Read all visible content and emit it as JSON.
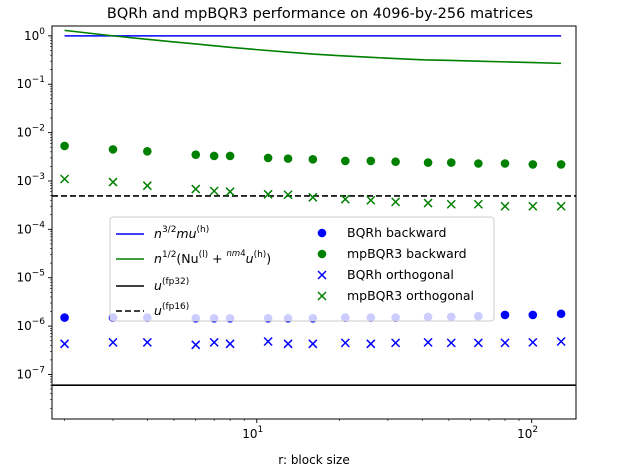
{
  "chart_data": {
    "type": "scatter",
    "title": "BQRh and mpBQR3 performance on 4096-by-256 matrices",
    "xlabel": "r: block size",
    "ylabel": "",
    "xscale": "log",
    "yscale": "log",
    "xlim": [
      1.8,
      145
    ],
    "ylim": [
      1.2e-08,
      1.6
    ],
    "x_ticks": [
      {
        "value": 10,
        "base": "10",
        "exp": "1"
      },
      {
        "value": 100,
        "base": "10",
        "exp": "2"
      }
    ],
    "y_ticks": [
      {
        "value": 1e-07,
        "base": "10",
        "exp": "−7"
      },
      {
        "value": 1e-06,
        "base": "10",
        "exp": "−6"
      },
      {
        "value": 1e-05,
        "base": "10",
        "exp": "−5"
      },
      {
        "value": 0.0001,
        "base": "10",
        "exp": "−4"
      },
      {
        "value": 0.001,
        "base": "10",
        "exp": "−3"
      },
      {
        "value": 0.01,
        "base": "10",
        "exp": "−2"
      },
      {
        "value": 0.1,
        "base": "10",
        "exp": "−1"
      },
      {
        "value": 1,
        "base": "10",
        "exp": "0"
      }
    ],
    "legend_placement": "center-left",
    "grid": false,
    "x": [
      2,
      3,
      4,
      6,
      7,
      8,
      11,
      13,
      16,
      21,
      26,
      32,
      42,
      51,
      64,
      80,
      101,
      128
    ],
    "lines": [
      {
        "name_parts": [
          "n",
          "3/2",
          "mu",
          "(h)"
        ],
        "color": "#0000ff",
        "style": "solid",
        "x": [
          2,
          128
        ],
        "y": [
          1.0,
          1.0
        ]
      },
      {
        "name_parts": [
          "n",
          "1/2",
          "(Nu",
          "(l)",
          " + ",
          "nm",
          "4",
          "u",
          "(h)",
          ")"
        ],
        "color": "#008000",
        "style": "solid",
        "x": [
          2,
          3,
          4,
          5,
          6,
          8,
          10,
          13,
          16,
          20,
          26,
          32,
          40,
          51,
          64,
          80,
          101,
          128
        ],
        "y": [
          1.3,
          1.0,
          0.85,
          0.75,
          0.68,
          0.58,
          0.52,
          0.46,
          0.42,
          0.39,
          0.36,
          0.34,
          0.32,
          0.31,
          0.3,
          0.29,
          0.28,
          0.27
        ]
      },
      {
        "name_parts": [
          "u",
          "(fp32)"
        ],
        "color": "#000000",
        "style": "solid",
        "x": [
          1.8,
          145
        ],
        "y": [
          6e-08,
          6e-08
        ]
      },
      {
        "name_parts": [
          "u",
          "(fp16)"
        ],
        "color": "#000000",
        "style": "dashed",
        "x": [
          1.8,
          145
        ],
        "y": [
          0.00049,
          0.00049
        ]
      }
    ],
    "series": [
      {
        "name": "BQRh backward",
        "marker": "circle",
        "color": "#0000ff",
        "values": [
          1.5e-06,
          1.5e-06,
          1.5e-06,
          1.45e-06,
          1.45e-06,
          1.45e-06,
          1.45e-06,
          1.45e-06,
          1.45e-06,
          1.5e-06,
          1.5e-06,
          1.5e-06,
          1.55e-06,
          1.55e-06,
          1.6e-06,
          1.7e-06,
          1.7e-06,
          1.8e-06
        ]
      },
      {
        "name": "mpBQR3 backward",
        "marker": "circle",
        "color": "#008000",
        "values": [
          0.0053,
          0.0045,
          0.0041,
          0.0035,
          0.0033,
          0.0033,
          0.003,
          0.0029,
          0.0028,
          0.0026,
          0.0026,
          0.0025,
          0.0024,
          0.0024,
          0.0023,
          0.0023,
          0.0022,
          0.0022
        ]
      },
      {
        "name": "BQRh orthogonal",
        "marker": "x",
        "color": "#0000ff",
        "values": [
          4.3e-07,
          4.6e-07,
          4.6e-07,
          4.1e-07,
          4.6e-07,
          4.3e-07,
          4.8e-07,
          4.3e-07,
          4.3e-07,
          4.5e-07,
          4.3e-07,
          4.5e-07,
          4.6e-07,
          4.5e-07,
          4.5e-07,
          4.5e-07,
          4.6e-07,
          4.8e-07
        ]
      },
      {
        "name": "mpBQR3 orthogonal",
        "marker": "x",
        "color": "#008000",
        "values": [
          0.0011,
          0.00095,
          0.0008,
          0.00068,
          0.00062,
          0.0006,
          0.00053,
          0.00052,
          0.00046,
          0.00042,
          0.0004,
          0.00037,
          0.00035,
          0.00033,
          0.00033,
          0.0003,
          0.0003,
          0.0003
        ]
      }
    ]
  }
}
